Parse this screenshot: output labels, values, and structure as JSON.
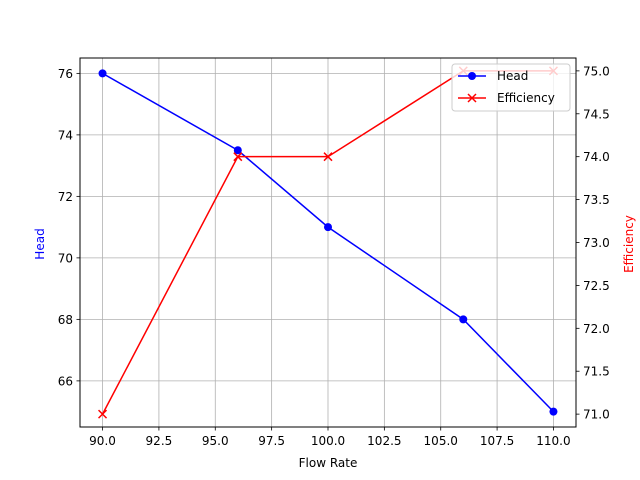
{
  "chart_data": {
    "type": "line",
    "title": "",
    "xlabel": "Flow Rate",
    "ylabel_left": "Head",
    "ylabel_right": "Efficiency",
    "x": [
      90,
      96,
      100,
      106,
      110
    ],
    "xlim": [
      89,
      111
    ],
    "xticks": [
      "90.0",
      "92.5",
      "95.0",
      "97.5",
      "100.0",
      "102.5",
      "105.0",
      "107.5",
      "110.0"
    ],
    "ylim_left": [
      64.5,
      76.5
    ],
    "yticks_left": [
      "66",
      "68",
      "70",
      "72",
      "74",
      "76"
    ],
    "ylim_right": [
      70.85,
      75.15
    ],
    "yticks_right": [
      "71.0",
      "71.5",
      "72.0",
      "72.5",
      "73.0",
      "73.5",
      "74.0",
      "74.5",
      "75.0"
    ],
    "grid": true,
    "legend_position": "upper-right",
    "series": [
      {
        "name": "Head",
        "axis": "left",
        "color": "#0000ff",
        "marker": "circle",
        "values": [
          76,
          73.5,
          71,
          68,
          65
        ]
      },
      {
        "name": "Efficiency",
        "axis": "right",
        "color": "#ff0000",
        "marker": "x",
        "values": [
          71,
          74,
          74,
          75,
          75
        ]
      }
    ]
  }
}
